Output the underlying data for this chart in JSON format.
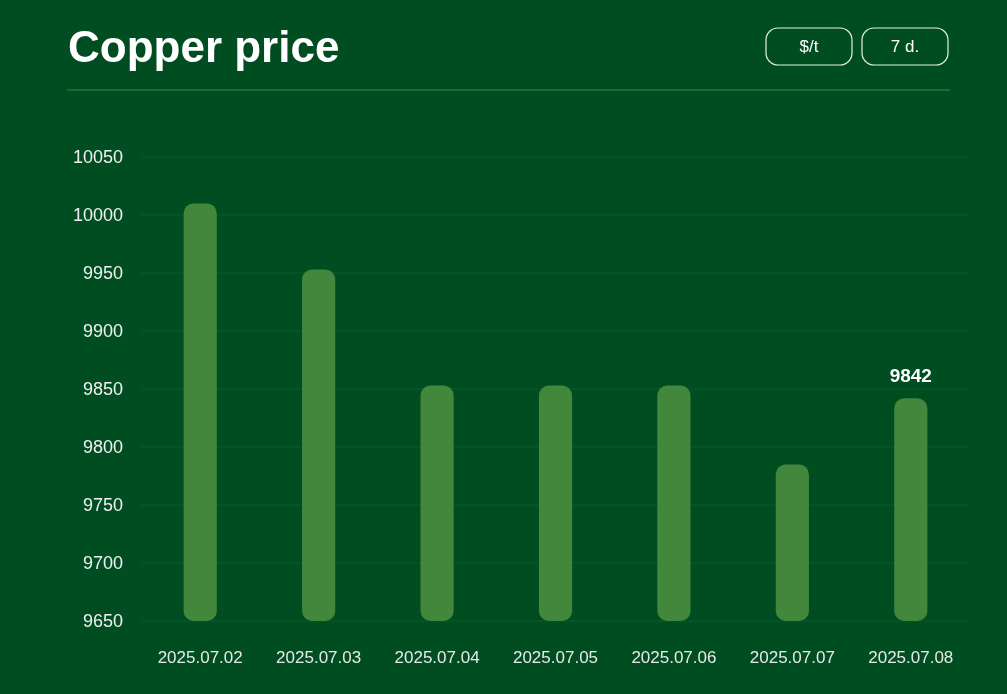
{
  "chart_data": {
    "type": "bar",
    "title": "Copper price",
    "annotations": [
      "$/t",
      "7 d."
    ],
    "categories": [
      "2025.07.02",
      "2025.07.03",
      "2025.07.04",
      "2025.07.05",
      "2025.07.06",
      "2025.07.07",
      "2025.07.08"
    ],
    "values": [
      10010,
      9953,
      9853,
      9853,
      9853,
      9785,
      9842
    ],
    "value_labels": [
      null,
      null,
      null,
      null,
      null,
      null,
      "9842"
    ],
    "color": "#43873c",
    "ylim": [
      9650,
      10050
    ],
    "yticks": [
      9650,
      9700,
      9750,
      9800,
      9850,
      9900,
      9950,
      10000,
      10050
    ],
    "grid": "y"
  }
}
